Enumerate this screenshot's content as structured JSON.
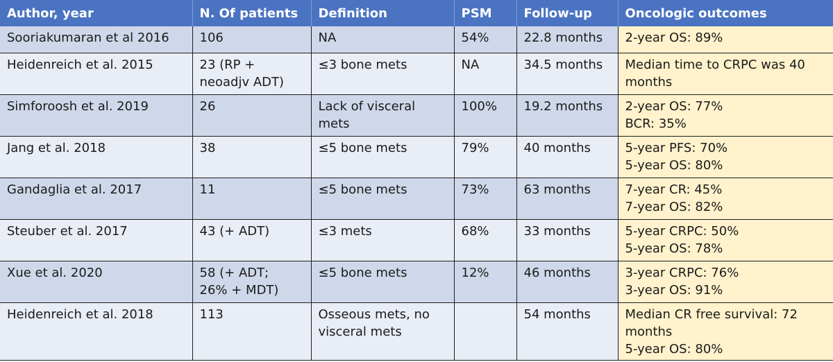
{
  "table": {
    "headers": [
      "Author, year",
      "N. Of patients",
      "Definition",
      "PSM",
      "Follow-up",
      "Oncologic outcomes"
    ],
    "rows": [
      {
        "author": "Sooriakumaran et al 2016",
        "patients": [
          "106"
        ],
        "definition": [
          "NA"
        ],
        "psm": "54%",
        "followup": "22.8 months",
        "outcomes": [
          "2-year OS: 89%"
        ]
      },
      {
        "author": "Heidenreich et al. 2015",
        "patients": [
          "23 (RP +",
          "neoadjv ADT)"
        ],
        "definition": [
          "≤3 bone mets"
        ],
        "psm": "NA",
        "followup": "34.5 months",
        "outcomes": [
          "Median time to CRPC was 40",
          "months"
        ]
      },
      {
        "author": "Simforoosh et al. 2019",
        "patients": [
          "26"
        ],
        "definition": [
          "Lack of visceral",
          "mets"
        ],
        "psm": "100%",
        "followup": "19.2 months",
        "outcomes": [
          "2-year OS: 77%",
          "BCR: 35%"
        ]
      },
      {
        "author": "Jang et al. 2018",
        "patients": [
          "38"
        ],
        "definition": [
          "≤5 bone mets"
        ],
        "psm": "79%",
        "followup": "40 months",
        "outcomes": [
          "5-year PFS: 70%",
          "5-year OS: 80%"
        ]
      },
      {
        "author": "Gandaglia et al. 2017",
        "patients": [
          "11"
        ],
        "definition": [
          "≤5 bone mets"
        ],
        "psm": "73%",
        "followup": "63 months",
        "outcomes": [
          "7-year CR: 45%",
          "7-year OS: 82%"
        ]
      },
      {
        "author": "Steuber et al. 2017",
        "patients": [
          "43 (+ ADT)"
        ],
        "definition": [
          "≤3 mets"
        ],
        "psm": "68%",
        "followup": "33 months",
        "outcomes": [
          "5-year CRPC: 50%",
          "5-year OS: 78%"
        ]
      },
      {
        "author": "Xue et al. 2020",
        "patients": [
          "58 (+ ADT;",
          "26% + MDT)"
        ],
        "definition": [
          "≤5 bone mets"
        ],
        "psm": "12%",
        "followup": "46 months",
        "outcomes": [
          "3-year CRPC: 76%",
          "3-year OS: 91%"
        ]
      },
      {
        "author": "Heidenreich et al. 2018",
        "patients": [
          "113"
        ],
        "definition": [
          "Osseous mets, no",
          "visceral mets"
        ],
        "psm": "",
        "followup": "54 months",
        "outcomes": [
          "Median CR free survival: 72",
          "months",
          "5-year OS: 80%"
        ]
      }
    ]
  }
}
